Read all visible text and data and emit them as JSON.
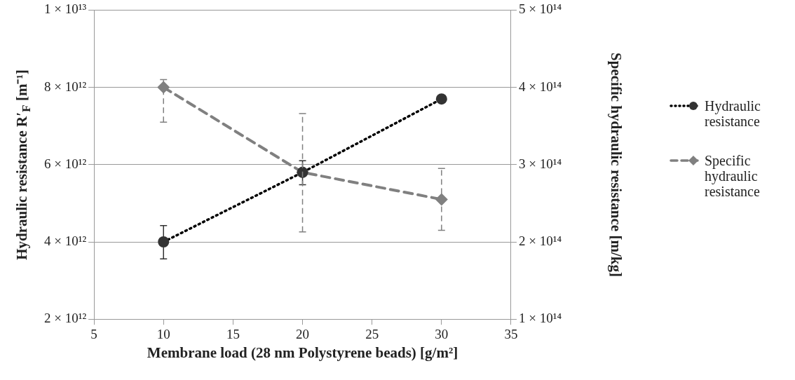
{
  "chart_data": {
    "type": "line",
    "xlabel": "Membrane load (28 nm Polystyrene beads) [g/m²]",
    "ylabel": "Hydraulic resistance R′$_{F}$  [m⁻¹]",
    "y2label": "Specific hydraulic resistance [m/kg]",
    "x": [
      10,
      20,
      30
    ],
    "xlim": [
      5,
      35
    ],
    "xticks": [
      5,
      10,
      15,
      20,
      25,
      30,
      35
    ],
    "ylim": [
      2000000000000.0,
      10000000000000.0
    ],
    "yticks": [
      {
        "value": 2000000000000.0,
        "label": "2 × 10¹²"
      },
      {
        "value": 4000000000000.0,
        "label": "4 × 10¹²"
      },
      {
        "value": 6000000000000.0,
        "label": "6 × 10¹²"
      },
      {
        "value": 8000000000000.0,
        "label": "8 × 10¹²"
      },
      {
        "value": 10000000000000.0,
        "label": "1 × 10¹³"
      }
    ],
    "y2lim": [
      100000000000000.0,
      500000000000000.0
    ],
    "y2ticks": [
      {
        "value": 100000000000000.0,
        "label": "1 × 10¹⁴"
      },
      {
        "value": 200000000000000.0,
        "label": "2 × 10¹⁴"
      },
      {
        "value": 300000000000000.0,
        "label": "3 × 10¹⁴"
      },
      {
        "value": 400000000000000.0,
        "label": "4 × 10¹⁴"
      },
      {
        "value": 500000000000000.0,
        "label": "5 × 10¹⁴"
      }
    ],
    "grid": "y",
    "legend": "right",
    "series": [
      {
        "name": "Hydraulic resistance",
        "color": "#333333",
        "values": [
          4000000000000.0,
          5800000000000.0,
          7700000000000.0
        ],
        "errors": [
          [
            3560000000000.0,
            4420000000000.0
          ],
          [
            5480000000000.0,
            6100000000000.0
          ],
          null
        ],
        "marker": "circle",
        "line_style": "dotted"
      },
      {
        "name": "Specific hydraulic resistance",
        "color": "#808080",
        "axis": "y2",
        "values": [
          400000000000000.0,
          290000000000000.0,
          255000000000000.0
        ],
        "errors": [
          [
            355000000000000.0,
            410000000000000.0
          ],
          [
            213000000000000.0,
            366000000000000.0
          ],
          [
            215000000000000.0,
            295000000000000.0
          ]
        ],
        "marker": "diamond",
        "line_style": "dashed"
      }
    ]
  }
}
